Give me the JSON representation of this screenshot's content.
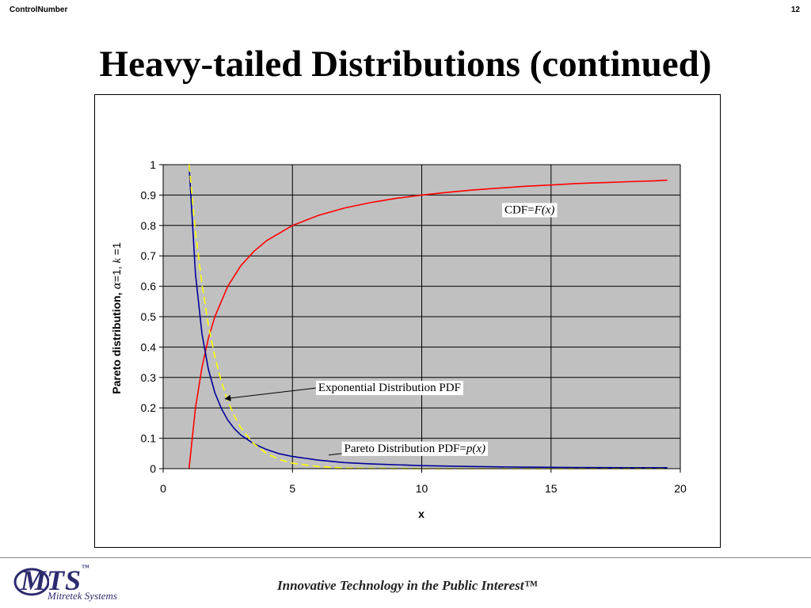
{
  "header": {
    "control_number": "ControlNumber",
    "page_number": "12"
  },
  "slide": {
    "title": "Heavy-tailed Distributions (continued)"
  },
  "chart_data": {
    "type": "line",
    "xlabel": "x",
    "ylabel_parts": {
      "prefix": "Pareto distribution, ",
      "alpha": "α",
      "mid": "=1, ",
      "k": "k",
      "suffix": " =1"
    },
    "xlim": [
      0,
      20
    ],
    "ylim": [
      0,
      1
    ],
    "xticks": [
      "0",
      "5",
      "10",
      "15",
      "20"
    ],
    "yticks": [
      "0",
      "0.1",
      "0.2",
      "0.3",
      "0.4",
      "0.5",
      "0.6",
      "0.7",
      "0.8",
      "0.9",
      "1"
    ],
    "grid": true,
    "plot_background": "#c0c0c0",
    "series": [
      {
        "key": "cdf",
        "color": "#ff0000",
        "x": [
          1,
          1.25,
          1.5,
          1.75,
          2,
          2.5,
          3,
          3.5,
          4,
          5,
          6,
          7,
          8,
          9,
          10,
          11,
          12,
          13,
          14,
          15,
          16,
          17,
          18,
          19,
          19.5
        ],
        "y": [
          0,
          0.2,
          0.333,
          0.429,
          0.5,
          0.6,
          0.667,
          0.714,
          0.75,
          0.8,
          0.833,
          0.857,
          0.875,
          0.889,
          0.9,
          0.909,
          0.917,
          0.923,
          0.929,
          0.933,
          0.938,
          0.941,
          0.944,
          0.947,
          0.949
        ]
      },
      {
        "key": "pareto_pdf",
        "color": "#000099",
        "x": [
          1,
          1.25,
          1.5,
          1.75,
          2,
          2.25,
          2.5,
          2.75,
          3,
          3.5,
          4,
          4.5,
          5,
          6,
          7,
          8,
          10,
          12,
          14,
          16,
          18,
          19.5
        ],
        "y": [
          1,
          0.64,
          0.444,
          0.327,
          0.25,
          0.198,
          0.16,
          0.132,
          0.111,
          0.082,
          0.063,
          0.049,
          0.04,
          0.028,
          0.02,
          0.016,
          0.01,
          0.007,
          0.005,
          0.004,
          0.003,
          0.003
        ]
      },
      {
        "key": "exp_pdf",
        "color": "#ffff00",
        "dashed": true,
        "x": [
          1,
          1.25,
          1.5,
          1.75,
          2,
          2.25,
          2.5,
          2.75,
          3,
          3.5,
          4,
          4.5,
          5,
          6,
          7,
          8,
          10,
          12,
          14,
          16,
          18,
          19.5
        ],
        "y": [
          1,
          0.779,
          0.607,
          0.472,
          0.368,
          0.287,
          0.223,
          0.174,
          0.135,
          0.082,
          0.05,
          0.03,
          0.018,
          0.007,
          0.002,
          0.001,
          0,
          0,
          0,
          0,
          0,
          0
        ]
      }
    ],
    "annotations": {
      "cdf": {
        "text": "CDF=",
        "italic": "F(x)",
        "anchor_x": 13.2,
        "anchor_y": 0.84
      },
      "exp": {
        "text": "Exponential Distribution PDF",
        "anchor_x": 6,
        "anchor_y": 0.255,
        "arrow_to": [
          2.4,
          0.23
        ]
      },
      "pareto": {
        "text": "Pareto Distribution PDF=",
        "italic": "p(x)",
        "anchor_x": 7,
        "anchor_y": 0.055,
        "arrow_to": [
          6.4,
          0.045
        ]
      }
    }
  },
  "footer": {
    "logo_text": "MTS",
    "logo_tm": "™",
    "logo_sub": "Mitretek Systems",
    "tagline": "Innovative Technology in the Public Interest™"
  }
}
